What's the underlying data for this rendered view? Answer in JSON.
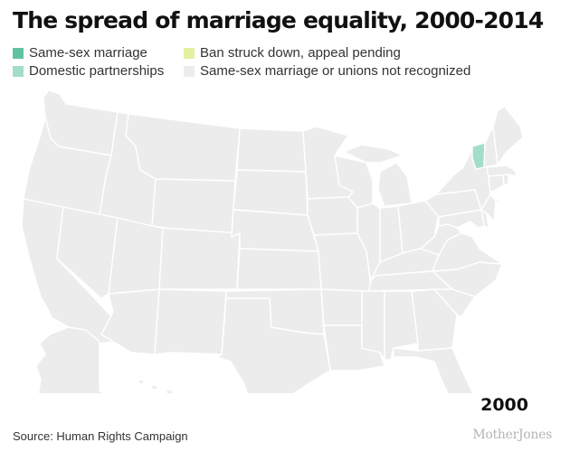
{
  "title": "The spread of marriage equality, 2000-2014",
  "legend": [
    {
      "label": "Same-sex marriage",
      "color": "#5fc3a3"
    },
    {
      "label": "Ban struck down, appeal pending",
      "color": "#e3f2a0"
    },
    {
      "label": "Domestic partnerships",
      "color": "#a3dccb"
    },
    {
      "label": "Same-sex marriage or unions not recognized",
      "color": "#ececec"
    }
  ],
  "map": {
    "default_fill": "#ececec",
    "states": [
      {
        "id": "VT",
        "status": "Domestic partnerships",
        "fill": "#a3dccb"
      }
    ]
  },
  "year": "2000",
  "source": "Source: Human Rights Campaign",
  "brand": "MotherJones"
}
